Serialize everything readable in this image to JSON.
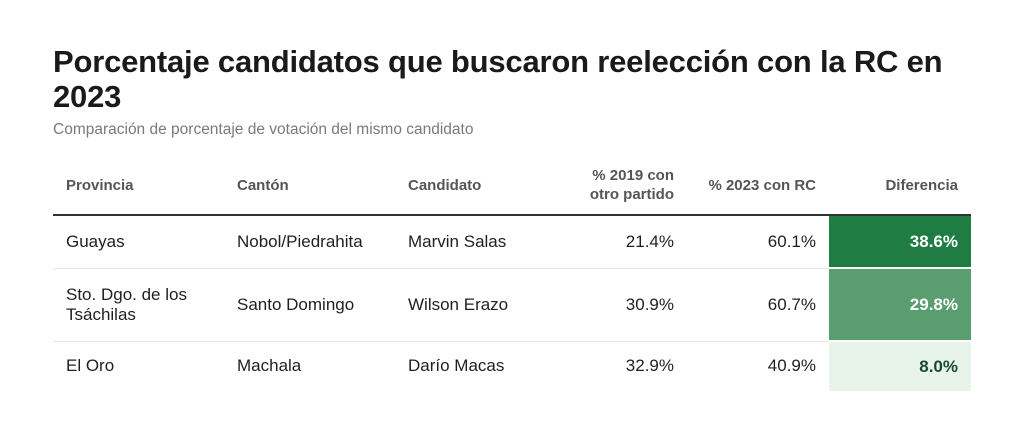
{
  "title": "Porcentaje candidatos que buscaron reelección con la RC en 2023",
  "subtitle": "Comparación de porcentaje de votación del mismo candidato",
  "table": {
    "headers": {
      "provincia": "Provincia",
      "canton": "Cantón",
      "candidato": "Candidato",
      "pct2019": "% 2019 con otro partido",
      "pct2023": "% 2023 con RC",
      "diferencia": "Diferencia"
    },
    "rows": [
      {
        "provincia": "Guayas",
        "canton": "Nobol/Piedrahita",
        "candidato": "Marvin Salas",
        "pct2019": "21.4%",
        "pct2023": "60.1%",
        "diferencia": "38.6%",
        "diff_bg": "#1f7c42",
        "diff_fg": "#ffffff"
      },
      {
        "provincia": "Sto. Dgo. de los Tsáchilas",
        "canton": "Santo Domingo",
        "candidato": "Wilson Erazo",
        "pct2019": "30.9%",
        "pct2023": "60.7%",
        "diferencia": "29.8%",
        "diff_bg": "#5a9e70",
        "diff_fg": "#ffffff"
      },
      {
        "provincia": "El Oro",
        "canton": "Machala",
        "candidato": "Darío Macas",
        "pct2019": "32.9%",
        "pct2023": "40.9%",
        "diferencia": "8.0%",
        "diff_bg": "#e8f4ea",
        "diff_fg": "#1a4a2a"
      }
    ]
  }
}
